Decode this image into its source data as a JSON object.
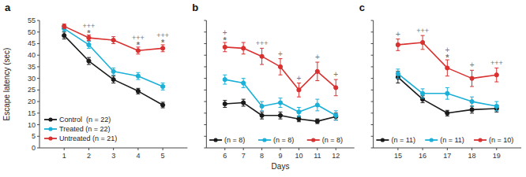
{
  "chart_data": [
    {
      "type": "line",
      "title": "a",
      "ylabel": "Escape latency (sec)",
      "x": [
        1,
        2,
        3,
        4,
        5
      ],
      "xlim": [
        0,
        6
      ],
      "xticks": [
        1,
        2,
        3,
        4,
        5
      ],
      "ylim": [
        0,
        55
      ],
      "yticks": [
        0,
        5,
        10,
        15,
        20,
        25,
        30,
        35,
        40,
        45,
        50,
        55
      ],
      "grid": false,
      "legend": "lower left",
      "marker": "circle",
      "series": [
        {
          "name": "Control  (n = 22)",
          "color": "#1a1a1a",
          "values": [
            48.5,
            37.5,
            29.5,
            24.5,
            18.5
          ],
          "errors": [
            1.5,
            1.5,
            1.5,
            1.2,
            1.2
          ]
        },
        {
          "name": "Treated (n = 22)",
          "color": "#1ab0d8",
          "values": [
            51.5,
            44.5,
            33.0,
            31.0,
            26.5
          ],
          "errors": [
            1.2,
            1.5,
            1.5,
            1.5,
            1.5
          ]
        },
        {
          "name": "Untreated (n = 21)",
          "color": "#d93030",
          "values": [
            52.5,
            47.5,
            46.5,
            42.0,
            43.0
          ],
          "errors": [
            1.0,
            1.2,
            1.5,
            1.5,
            1.5
          ]
        }
      ],
      "annotations": [
        {
          "text": "*",
          "x": 2,
          "color": "#777777"
        },
        {
          "text": "+++",
          "x": 2,
          "color": "#777777"
        },
        {
          "text": "*",
          "x": 4,
          "color": "#777777"
        },
        {
          "text": "+++",
          "x": 4,
          "color": "#777777"
        },
        {
          "text": "*",
          "x": 5,
          "color": "#777777"
        },
        {
          "text": "+++",
          "x": 5,
          "color": "#777777"
        }
      ]
    },
    {
      "type": "line",
      "title": "b",
      "xlabel": "Days",
      "x": [
        6,
        7,
        8,
        9,
        10,
        11,
        12
      ],
      "xlim": [
        5,
        13
      ],
      "xticks": [
        6,
        7,
        8,
        9,
        10,
        11,
        12
      ],
      "ylim": [
        0,
        55
      ],
      "yticks": [
        0,
        5,
        10,
        15,
        20,
        25,
        30,
        35,
        40,
        45,
        50,
        55
      ],
      "tick_labels": "x",
      "grid": false,
      "legend": "lower center",
      "marker": "circle",
      "series": [
        {
          "name": "(n = 8)",
          "color": "#1a1a1a",
          "values": [
            19.0,
            19.5,
            14.0,
            14.0,
            12.5,
            11.5,
            13.5
          ],
          "errors": [
            1.5,
            1.5,
            1.5,
            1.5,
            1.2,
            1.0,
            1.5
          ]
        },
        {
          "name": "(n = 8)",
          "color": "#1ab0d8",
          "values": [
            29.5,
            28.0,
            18.0,
            19.5,
            15.5,
            18.5,
            14.0
          ],
          "errors": [
            2.0,
            2.0,
            2.0,
            2.0,
            2.0,
            2.5,
            2.0
          ]
        },
        {
          "name": "(n = 8)",
          "color": "#d93030",
          "values": [
            43.5,
            43.0,
            39.5,
            35.0,
            25.0,
            33.0,
            26.0
          ],
          "errors": [
            2.0,
            2.5,
            3.5,
            3.5,
            3.0,
            4.0,
            3.5
          ]
        }
      ],
      "annotations": [
        {
          "text": "*",
          "x": 6,
          "color": "#777777"
        },
        {
          "text": "+",
          "x": 6,
          "color": "#777777"
        },
        {
          "text": "+++",
          "x": 8,
          "color": "#777777"
        },
        {
          "text": "+",
          "x": 9,
          "color": "#777777"
        },
        {
          "text": "+",
          "x": 10,
          "color": "#777777"
        },
        {
          "text": "+",
          "x": 11,
          "color": "#777777"
        },
        {
          "text": "+",
          "x": 12,
          "color": "#777777"
        }
      ]
    },
    {
      "type": "line",
      "title": "c",
      "x": [
        15,
        16,
        17,
        18,
        19
      ],
      "xlim": [
        14,
        20
      ],
      "xticks": [
        15,
        16,
        17,
        18,
        19
      ],
      "ylim": [
        0,
        55
      ],
      "yticks": [
        0,
        5,
        10,
        15,
        20,
        25,
        30,
        35,
        40,
        45,
        50,
        55
      ],
      "tick_labels": "x",
      "grid": false,
      "legend": "lower center",
      "marker": "circle",
      "series": [
        {
          "name": "(n = 11)",
          "color": "#1a1a1a",
          "values": [
            30.5,
            21.0,
            15.0,
            16.5,
            17.0
          ],
          "errors": [
            2.5,
            1.5,
            1.2,
            1.5,
            1.5
          ]
        },
        {
          "name": "(n = 11)",
          "color": "#1ab0d8",
          "values": [
            32.0,
            23.5,
            23.5,
            20.0,
            18.0
          ],
          "errors": [
            2.0,
            2.0,
            2.5,
            2.0,
            2.0
          ]
        },
        {
          "name": "(n = 10)",
          "color": "#d93030",
          "values": [
            44.5,
            45.5,
            34.5,
            30.0,
            31.5
          ],
          "errors": [
            2.5,
            3.0,
            3.5,
            3.5,
            3.0
          ]
        }
      ],
      "annotations": [
        {
          "text": "+",
          "x": 15,
          "color": "#777777"
        },
        {
          "text": "+++",
          "x": 16,
          "color": "#777777"
        },
        {
          "text": "*",
          "x": 17,
          "color": "#777777"
        },
        {
          "text": "+",
          "x": 17,
          "color": "#777777"
        },
        {
          "text": "+",
          "x": 18,
          "color": "#777777"
        },
        {
          "text": "+++",
          "x": 19,
          "color": "#777777"
        }
      ]
    }
  ]
}
